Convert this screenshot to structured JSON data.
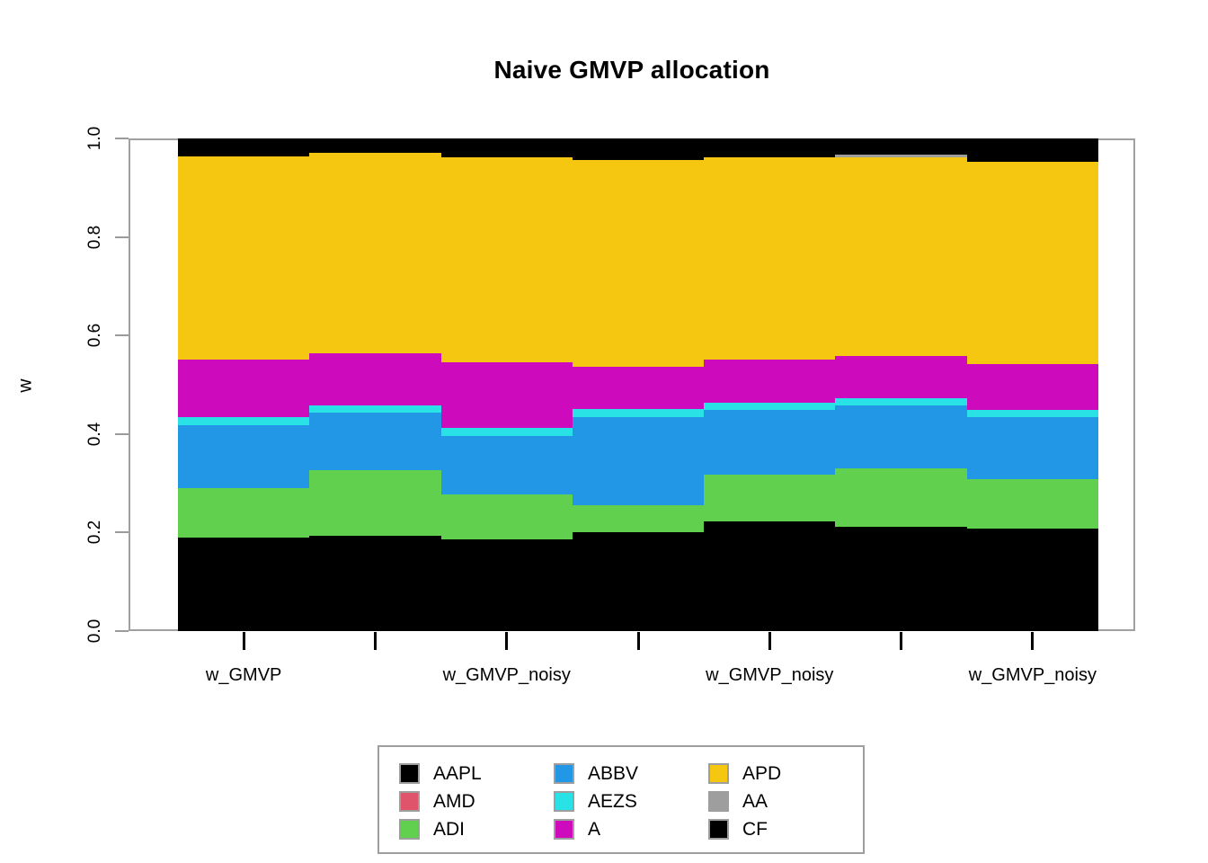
{
  "title": "Naive GMVP allocation",
  "y_axis_label": "w",
  "chart_data": {
    "type": "bar",
    "stacked": true,
    "orientation": "vertical",
    "grid": false,
    "ylim": [
      0,
      1
    ],
    "yticks": [
      "0.0",
      "0.2",
      "0.4",
      "0.6",
      "0.8",
      "1.0"
    ],
    "categories": [
      "w_GMVP",
      "w_GMVP_noisy",
      "w_GMVP_noisy",
      "w_GMVP_noisy",
      "w_GMVP_noisy",
      "w_GMVP_noisy",
      "w_GMVP_noisy"
    ],
    "x_labels_drawn": [
      {
        "bar_index": 0,
        "label": "w_GMVP"
      },
      {
        "bar_index": 2,
        "label": "w_GMVP_noisy"
      },
      {
        "bar_index": 4,
        "label": "w_GMVP_noisy"
      },
      {
        "bar_index": 6,
        "label": "w_GMVP_noisy"
      }
    ],
    "series": [
      {
        "name": "AAPL",
        "color": "#000000",
        "values": [
          0.19,
          0.193,
          0.186,
          0.201,
          0.223,
          0.212,
          0.208
        ]
      },
      {
        "name": "AMD",
        "color": "#DF536B",
        "values": [
          0.0,
          0.0,
          0.0,
          0.0,
          0.0,
          0.0,
          0.0
        ]
      },
      {
        "name": "ADI",
        "color": "#61D04F",
        "values": [
          0.1,
          0.134,
          0.091,
          0.055,
          0.095,
          0.118,
          0.1
        ]
      },
      {
        "name": "ABBV",
        "color": "#2297E6",
        "values": [
          0.128,
          0.116,
          0.119,
          0.178,
          0.131,
          0.128,
          0.126
        ]
      },
      {
        "name": "AEZS",
        "color": "#28E2E5",
        "values": [
          0.016,
          0.015,
          0.016,
          0.017,
          0.015,
          0.015,
          0.015
        ]
      },
      {
        "name": "A",
        "color": "#CD0BBC",
        "values": [
          0.117,
          0.106,
          0.134,
          0.085,
          0.087,
          0.085,
          0.093
        ]
      },
      {
        "name": "APD",
        "color": "#F5C710",
        "values": [
          0.412,
          0.407,
          0.416,
          0.42,
          0.411,
          0.404,
          0.411
        ]
      },
      {
        "name": "AA",
        "color": "#9E9E9E",
        "values": [
          0.0,
          0.0,
          0.0,
          0.0,
          0.0,
          0.005,
          0.0
        ]
      },
      {
        "name": "CF",
        "color": "#000000",
        "values": [
          0.037,
          0.029,
          0.038,
          0.044,
          0.038,
          0.033,
          0.047
        ]
      }
    ],
    "legend": {
      "position": "bottom-center",
      "columns": 3,
      "items": [
        {
          "label": "AAPL",
          "color": "#000000"
        },
        {
          "label": "AMD",
          "color": "#DF536B"
        },
        {
          "label": "ADI",
          "color": "#61D04F"
        },
        {
          "label": "ABBV",
          "color": "#2297E6"
        },
        {
          "label": "AEZS",
          "color": "#28E2E5"
        },
        {
          "label": "A",
          "color": "#CD0BBC"
        },
        {
          "label": "APD",
          "color": "#F5C710"
        },
        {
          "label": "AA",
          "color": "#9E9E9E"
        },
        {
          "label": "CF",
          "color": "#000000"
        }
      ]
    },
    "style": {
      "box_color": "#a0a0a0",
      "y_tick_color": "#9b9b9b",
      "x_tick_color": "#000000"
    }
  }
}
